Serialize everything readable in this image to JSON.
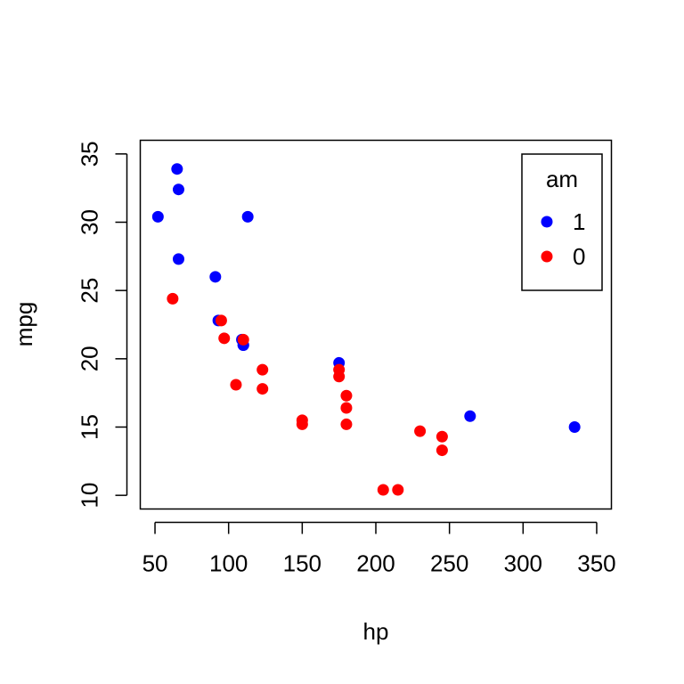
{
  "chart_data": {
    "type": "scatter",
    "title": "",
    "xlabel": "hp",
    "ylabel": "mpg",
    "xlim": [
      40,
      360
    ],
    "ylim": [
      9,
      36
    ],
    "xticks": [
      50,
      100,
      150,
      200,
      250,
      300,
      350
    ],
    "yticks": [
      10,
      15,
      20,
      25,
      30,
      35
    ],
    "grid": false,
    "legend": {
      "title": "am",
      "position": "top-right",
      "entries": [
        {
          "label": "1",
          "color": "#0000ff"
        },
        {
          "label": "0",
          "color": "#ff0000"
        }
      ]
    },
    "series": [
      {
        "name": "1",
        "color": "#0000ff",
        "points": [
          [
            52,
            30.4
          ],
          [
            65,
            33.9
          ],
          [
            66,
            32.4
          ],
          [
            66,
            27.3
          ],
          [
            113,
            30.4
          ],
          [
            91,
            26.0
          ],
          [
            93,
            22.8
          ],
          [
            110,
            21.0
          ],
          [
            110,
            21.0
          ],
          [
            175,
            19.7
          ],
          [
            264,
            15.8
          ],
          [
            335,
            15.0
          ],
          [
            109,
            21.4
          ]
        ]
      },
      {
        "name": "0",
        "color": "#ff0000",
        "points": [
          [
            62,
            24.4
          ],
          [
            95,
            22.8
          ],
          [
            97,
            21.5
          ],
          [
            110,
            21.4
          ],
          [
            105,
            18.1
          ],
          [
            123,
            19.2
          ],
          [
            123,
            17.8
          ],
          [
            150,
            15.5
          ],
          [
            150,
            15.2
          ],
          [
            175,
            19.2
          ],
          [
            175,
            18.7
          ],
          [
            180,
            17.3
          ],
          [
            180,
            16.4
          ],
          [
            180,
            15.2
          ],
          [
            205,
            10.4
          ],
          [
            215,
            10.4
          ],
          [
            230,
            14.7
          ],
          [
            245,
            14.3
          ],
          [
            245,
            13.3
          ]
        ]
      }
    ]
  }
}
